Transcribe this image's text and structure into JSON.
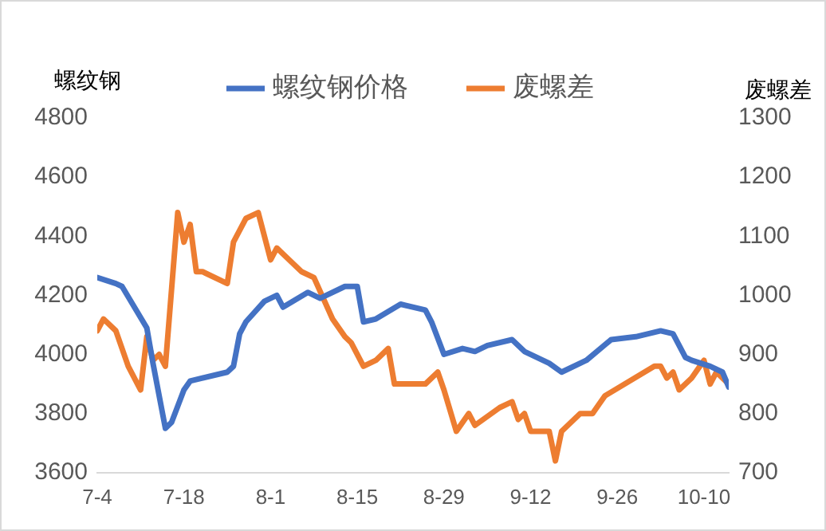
{
  "chart_data": {
    "type": "line",
    "ylabel": "螺纹钢",
    "y2label": "废螺差",
    "legend": "top",
    "grid": false,
    "marker": "none",
    "line_style": "solid",
    "xlim": [
      "--07-04",
      "--10-14"
    ],
    "xticks": [
      {
        "value": "--07-04",
        "label": "7-4"
      },
      {
        "value": "--07-18",
        "label": "7-18"
      },
      {
        "value": "--08-01",
        "label": "8-1"
      },
      {
        "value": "--08-15",
        "label": "8-15"
      },
      {
        "value": "--08-29",
        "label": "8-29"
      },
      {
        "value": "--09-12",
        "label": "9-12"
      },
      {
        "value": "--09-26",
        "label": "9-26"
      },
      {
        "value": "--10-10",
        "label": "10-10"
      }
    ],
    "ylim": [
      3600,
      4800
    ],
    "yticks": [
      3600,
      3800,
      4000,
      4200,
      4400,
      4600,
      4800
    ],
    "y2lim": [
      700,
      1300
    ],
    "y2ticks": [
      700,
      800,
      900,
      1000,
      1100,
      1200,
      1300
    ],
    "series": [
      {
        "name": "螺纹钢价格",
        "color": "#4472c4",
        "x": [
          "--07-04",
          "--07-07",
          "--07-08",
          "--07-12",
          "--07-13",
          "--07-15",
          "--07-16",
          "--07-18",
          "--07-19",
          "--07-25",
          "--07-26",
          "--07-27",
          "--07-28",
          "--07-31",
          "--08-02",
          "--08-03",
          "--08-07",
          "--08-09",
          "--08-13",
          "--08-15",
          "--08-16",
          "--08-18",
          "--08-22",
          "--08-26",
          "--08-27",
          "--08-29",
          "--09-01",
          "--09-03",
          "--09-05",
          "--09-09",
          "--09-11",
          "--09-15",
          "--09-17",
          "--09-21",
          "--09-25",
          "--09-29",
          "--10-03",
          "--10-05",
          "--10-07",
          "--10-08",
          "--10-11",
          "--10-13",
          "--10-14"
        ],
        "values": [
          4260,
          4240,
          4230,
          4090,
          3970,
          3750,
          3770,
          3880,
          3910,
          3940,
          3960,
          4070,
          4110,
          4180,
          4200,
          4160,
          4210,
          4190,
          4230,
          4230,
          4110,
          4120,
          4170,
          4150,
          4110,
          4000,
          4020,
          4010,
          4030,
          4050,
          4010,
          3970,
          3940,
          3980,
          4050,
          4060,
          4080,
          4070,
          3990,
          3980,
          3960,
          3940,
          3890
        ]
      },
      {
        "name": "废螺差",
        "color": "#ed7d31",
        "axis": "y2",
        "x": [
          "--07-04",
          "--07-05",
          "--07-07",
          "--07-09",
          "--07-11",
          "--07-12",
          "--07-13",
          "--07-14",
          "--07-15",
          "--07-16",
          "--07-17",
          "--07-18",
          "--07-19",
          "--07-20",
          "--07-21",
          "--07-25",
          "--07-26",
          "--07-28",
          "--07-30",
          "--08-01",
          "--08-02",
          "--08-03",
          "--08-06",
          "--08-08",
          "--08-11",
          "--08-13",
          "--08-14",
          "--08-16",
          "--08-18",
          "--08-20",
          "--08-21",
          "--08-26",
          "--08-28",
          "--08-29",
          "--08-31",
          "--09-02",
          "--09-03",
          "--09-07",
          "--09-09",
          "--09-10",
          "--09-11",
          "--09-12",
          "--09-15",
          "--09-16",
          "--09-17",
          "--09-20",
          "--09-22",
          "--09-24",
          "--10-02",
          "--10-03",
          "--10-04",
          "--10-05",
          "--10-06",
          "--10-08",
          "--10-10",
          "--10-11",
          "--10-12",
          "--10-14"
        ],
        "values": [
          940,
          960,
          940,
          880,
          840,
          930,
          890,
          900,
          880,
          1010,
          1140,
          1090,
          1120,
          1040,
          1040,
          1020,
          1090,
          1130,
          1140,
          1060,
          1080,
          1070,
          1040,
          1030,
          960,
          930,
          920,
          880,
          890,
          910,
          850,
          850,
          870,
          840,
          770,
          800,
          780,
          810,
          820,
          790,
          800,
          770,
          770,
          720,
          770,
          800,
          800,
          830,
          880,
          880,
          860,
          870,
          840,
          860,
          890,
          850,
          870,
          850
        ]
      }
    ]
  }
}
